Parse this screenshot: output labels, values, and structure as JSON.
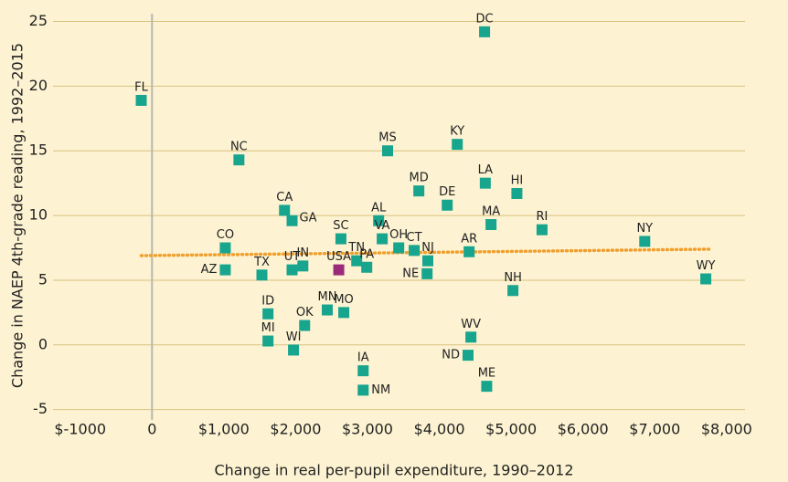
{
  "chart_data": {
    "type": "scatter",
    "xlabel": "Change in real per-pupil expenditure, 1990–2012",
    "ylabel": "Change in NAEP 4th-grade reading, 1992–2015",
    "labels": [
      "FL",
      "DC",
      "NC",
      "MS",
      "KY",
      "MD",
      "DE",
      "LA",
      "HI",
      "CA",
      "GA",
      "AL",
      "MA",
      "RI",
      "SC",
      "VA",
      "OH",
      "CT",
      "NJ",
      "AR",
      "NY",
      "CO",
      "AZ",
      "TX",
      "UT",
      "IN",
      "TN",
      "USA",
      "PA",
      "NE",
      "NH",
      "WY",
      "ID",
      "MN",
      "MO",
      "OK",
      "MI",
      "WI",
      "WV",
      "ND",
      "IA",
      "NM",
      "ME"
    ],
    "x": [
      -150,
      4630,
      1210,
      3280,
      4250,
      3715,
      4110,
      4640,
      5080,
      1845,
      1950,
      3155,
      4720,
      5430,
      2630,
      3205,
      3435,
      3650,
      3840,
      4415,
      6860,
      1020,
      1020,
      1530,
      1950,
      2100,
      2850,
      2600,
      2990,
      3830,
      5025,
      7710,
      1615,
      2440,
      2670,
      2125,
      1615,
      1970,
      4440,
      4400,
      2940,
      2940,
      4660
    ],
    "values": [
      18.9,
      24.2,
      14.3,
      15.0,
      15.5,
      11.9,
      10.8,
      12.5,
      11.7,
      10.4,
      9.6,
      9.6,
      9.3,
      8.9,
      8.2,
      8.2,
      7.5,
      7.3,
      6.5,
      7.2,
      8.0,
      7.5,
      5.8,
      5.4,
      5.8,
      6.1,
      6.5,
      5.8,
      6.0,
      5.5,
      4.2,
      5.1,
      2.4,
      2.7,
      2.5,
      1.5,
      0.3,
      -0.4,
      0.6,
      -0.8,
      -2.0,
      -3.5,
      -3.2
    ],
    "colors": [
      "#17a58e",
      "#17a58e",
      "#17a58e",
      "#17a58e",
      "#17a58e",
      "#17a58e",
      "#17a58e",
      "#17a58e",
      "#17a58e",
      "#17a58e",
      "#17a58e",
      "#17a58e",
      "#17a58e",
      "#17a58e",
      "#17a58e",
      "#17a58e",
      "#17a58e",
      "#17a58e",
      "#17a58e",
      "#17a58e",
      "#17a58e",
      "#17a58e",
      "#17a58e",
      "#17a58e",
      "#17a58e",
      "#17a58e",
      "#17a58e",
      "#9c2a7a",
      "#17a58e",
      "#17a58e",
      "#17a58e",
      "#17a58e",
      "#17a58e",
      "#17a58e",
      "#17a58e",
      "#17a58e",
      "#17a58e",
      "#17a58e",
      "#17a58e",
      "#17a58e",
      "#17a58e",
      "#17a58e",
      "#17a58e"
    ],
    "trendline": {
      "x": [
        -150,
        7800
      ],
      "values": [
        6.9,
        7.4
      ],
      "color": "#f0a030"
    },
    "xlim": [
      -1760,
      8320
    ],
    "ylim": [
      -5.8,
      25.6
    ],
    "xticks": [
      {
        "value": -1000,
        "label": "$-1000"
      },
      0,
      {
        "value": 1000,
        "label": "$1,000"
      },
      {
        "value": 2000,
        "label": "$2,000"
      },
      {
        "value": 3000,
        "label": "$3,000"
      },
      {
        "value": 4000,
        "label": "$4,000"
      },
      {
        "value": 5000,
        "label": "$5,000"
      },
      {
        "value": 6000,
        "label": "$6,000"
      },
      {
        "value": 7000,
        "label": "$7,000"
      },
      {
        "value": 8000,
        "label": "$8,000"
      }
    ],
    "yticks": [
      -5,
      0,
      5,
      10,
      15,
      20,
      25
    ],
    "grid": true
  }
}
